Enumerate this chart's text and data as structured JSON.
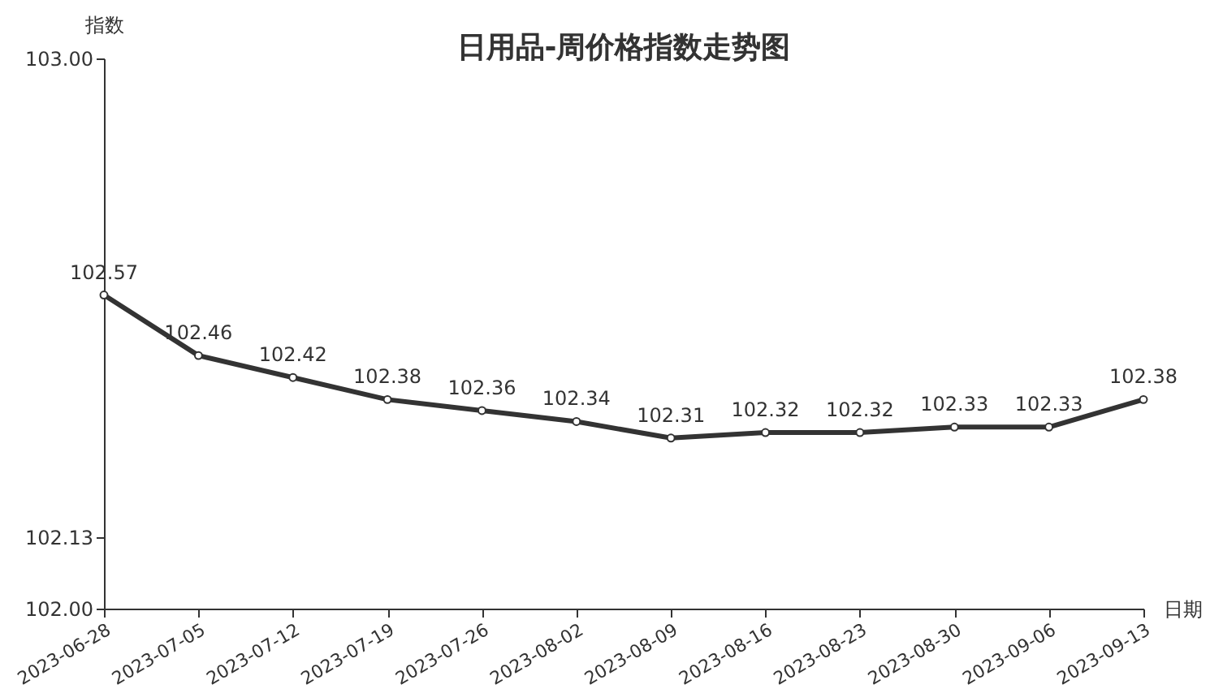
{
  "chart_data": {
    "type": "line",
    "title": "日用品-周价格指数走势图",
    "xlabel": "日期",
    "ylabel": "指数",
    "categories": [
      "2023-06-28",
      "2023-07-05",
      "2023-07-12",
      "2023-07-19",
      "2023-07-26",
      "2023-08-02",
      "2023-08-09",
      "2023-08-16",
      "2023-08-23",
      "2023-08-30",
      "2023-09-06",
      "2023-09-13"
    ],
    "series": [
      {
        "color": "#333333",
        "values": [
          102.57,
          102.46,
          102.42,
          102.38,
          102.36,
          102.34,
          102.31,
          102.32,
          102.32,
          102.33,
          102.33,
          102.38
        ]
      }
    ],
    "ylim": [
      102,
      103
    ],
    "yticks": [
      {
        "value": 102,
        "label": "102.00"
      },
      {
        "value": 102.13,
        "label": "102.13"
      },
      {
        "value": 103,
        "label": "103.00"
      }
    ],
    "data_labels": true,
    "grid": false,
    "marker": "circle",
    "line_style": "solid"
  }
}
